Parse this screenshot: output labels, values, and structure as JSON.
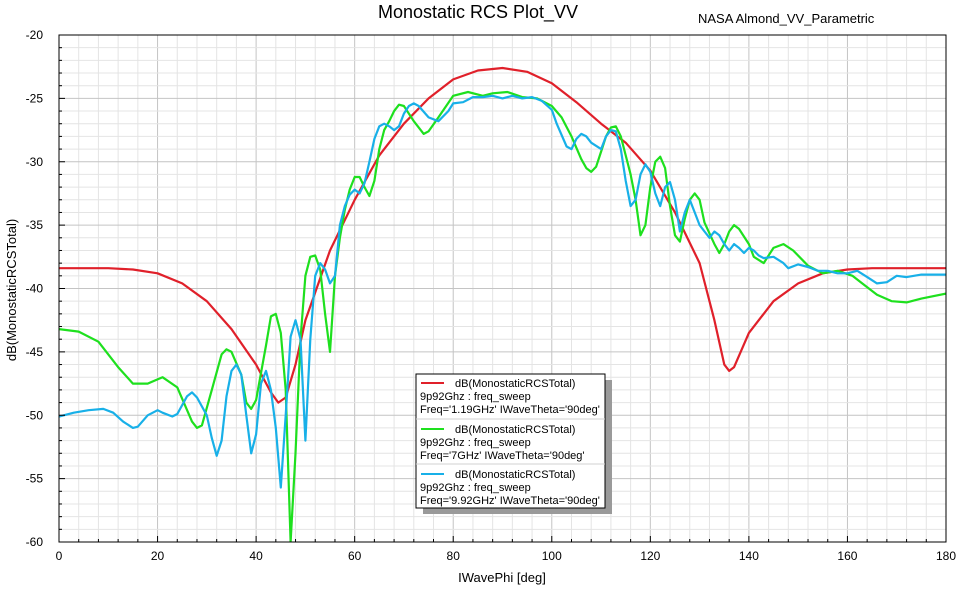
{
  "chart_data": {
    "type": "line",
    "title": "Monostatic RCS Plot_VV",
    "subtitle": "NASA Almond_VV_Parametric",
    "xlabel": "IWavePhi [deg]",
    "ylabel": "dB(MonostaticRCSTotal)",
    "xlim": [
      0,
      180
    ],
    "ylim": [
      -60,
      -20
    ],
    "xticks": [
      0,
      20,
      40,
      60,
      80,
      100,
      120,
      140,
      160,
      180
    ],
    "yticks": [
      -20,
      -25,
      -30,
      -35,
      -40,
      -45,
      -50,
      -55,
      -60
    ],
    "grid": true,
    "legend_position": "center-bottom",
    "series": [
      {
        "name": "dB(MonostaticRCSTotal)",
        "legend_line2": "9p92Ghz : freq_sweep",
        "legend_line3": "Freq='1.19GHz' IWaveTheta='90deg'",
        "color": "#e0202a",
        "points": [
          [
            0,
            -38.4
          ],
          [
            5,
            -38.4
          ],
          [
            10,
            -38.4
          ],
          [
            15,
            -38.5
          ],
          [
            20,
            -38.8
          ],
          [
            25,
            -39.6
          ],
          [
            30,
            -41.0
          ],
          [
            35,
            -43.2
          ],
          [
            40,
            -46.0
          ],
          [
            43,
            -48.2
          ],
          [
            44.5,
            -49.0
          ],
          [
            46,
            -48.6
          ],
          [
            48,
            -46.0
          ],
          [
            50,
            -42.5
          ],
          [
            55,
            -37.0
          ],
          [
            60,
            -33.0
          ],
          [
            65,
            -29.5
          ],
          [
            70,
            -27.0
          ],
          [
            75,
            -25.0
          ],
          [
            80,
            -23.5
          ],
          [
            85,
            -22.8
          ],
          [
            90,
            -22.6
          ],
          [
            95,
            -22.9
          ],
          [
            100,
            -23.8
          ],
          [
            105,
            -25.3
          ],
          [
            110,
            -27.0
          ],
          [
            115,
            -28.5
          ],
          [
            120,
            -30.7
          ],
          [
            125,
            -34.0
          ],
          [
            130,
            -38.0
          ],
          [
            133,
            -42.5
          ],
          [
            135,
            -46.0
          ],
          [
            136,
            -46.5
          ],
          [
            137,
            -46.2
          ],
          [
            140,
            -43.5
          ],
          [
            145,
            -41.0
          ],
          [
            150,
            -39.6
          ],
          [
            155,
            -38.8
          ],
          [
            160,
            -38.5
          ],
          [
            165,
            -38.4
          ],
          [
            170,
            -38.4
          ],
          [
            180,
            -38.4
          ]
        ]
      },
      {
        "name": "dB(MonostaticRCSTotal)",
        "legend_line2": "9p92Ghz : freq_sweep",
        "legend_line3": "Freq='7GHz' IWaveTheta='90deg'",
        "color": "#1ee01e",
        "points": [
          [
            0,
            -43.2
          ],
          [
            4,
            -43.4
          ],
          [
            8,
            -44.2
          ],
          [
            12,
            -46.2
          ],
          [
            15,
            -47.5
          ],
          [
            18,
            -47.5
          ],
          [
            21,
            -47.0
          ],
          [
            24,
            -47.8
          ],
          [
            27,
            -50.5
          ],
          [
            28,
            -51.0
          ],
          [
            29,
            -50.8
          ],
          [
            31,
            -48.0
          ],
          [
            33,
            -45.2
          ],
          [
            34,
            -44.8
          ],
          [
            35,
            -45.0
          ],
          [
            37,
            -46.8
          ],
          [
            38,
            -49.0
          ],
          [
            39,
            -49.5
          ],
          [
            40,
            -48.8
          ],
          [
            42,
            -44.5
          ],
          [
            43,
            -42.2
          ],
          [
            44,
            -42.0
          ],
          [
            45,
            -43.5
          ],
          [
            46,
            -48.0
          ],
          [
            47,
            -60.0
          ],
          [
            48,
            -53.0
          ],
          [
            49,
            -44.0
          ],
          [
            50,
            -39.0
          ],
          [
            51,
            -37.5
          ],
          [
            52,
            -37.4
          ],
          [
            53,
            -38.5
          ],
          [
            54,
            -42.0
          ],
          [
            55,
            -45.0
          ],
          [
            56,
            -39.0
          ],
          [
            57,
            -36.0
          ],
          [
            58,
            -33.8
          ],
          [
            59,
            -32.2
          ],
          [
            60,
            -31.2
          ],
          [
            61,
            -31.2
          ],
          [
            62,
            -32.0
          ],
          [
            63,
            -32.7
          ],
          [
            64,
            -31.5
          ],
          [
            65,
            -29.0
          ],
          [
            66,
            -27.5
          ],
          [
            67,
            -26.8
          ],
          [
            68,
            -26.0
          ],
          [
            69,
            -25.5
          ],
          [
            70,
            -25.6
          ],
          [
            72,
            -26.8
          ],
          [
            74,
            -27.8
          ],
          [
            75,
            -27.6
          ],
          [
            77,
            -26.5
          ],
          [
            80,
            -24.8
          ],
          [
            83,
            -24.5
          ],
          [
            86,
            -24.8
          ],
          [
            88,
            -24.6
          ],
          [
            91,
            -24.5
          ],
          [
            94,
            -24.9
          ],
          [
            97,
            -25.0
          ],
          [
            100,
            -25.6
          ],
          [
            102,
            -26.5
          ],
          [
            104,
            -28.0
          ],
          [
            106,
            -29.8
          ],
          [
            107,
            -30.5
          ],
          [
            108,
            -30.8
          ],
          [
            109,
            -30.4
          ],
          [
            110,
            -29.2
          ],
          [
            111,
            -28.0
          ],
          [
            112,
            -27.3
          ],
          [
            113,
            -27.2
          ],
          [
            114,
            -28.0
          ],
          [
            115,
            -29.5
          ],
          [
            116,
            -31.0
          ],
          [
            117,
            -33.0
          ],
          [
            118,
            -35.8
          ],
          [
            119,
            -35.0
          ],
          [
            120,
            -32.0
          ],
          [
            121,
            -30.0
          ],
          [
            122,
            -29.6
          ],
          [
            123,
            -30.5
          ],
          [
            124,
            -33.5
          ],
          [
            125,
            -35.8
          ],
          [
            126,
            -36.3
          ],
          [
            127,
            -34.5
          ],
          [
            128,
            -33.0
          ],
          [
            129,
            -32.5
          ],
          [
            130,
            -33.0
          ],
          [
            131,
            -34.8
          ],
          [
            133,
            -36.5
          ],
          [
            134,
            -37.2
          ],
          [
            135,
            -36.5
          ],
          [
            136,
            -35.5
          ],
          [
            137,
            -35.0
          ],
          [
            138,
            -35.3
          ],
          [
            140,
            -36.5
          ],
          [
            141,
            -37.5
          ],
          [
            143,
            -38.0
          ],
          [
            145,
            -36.8
          ],
          [
            147,
            -36.5
          ],
          [
            149,
            -37.0
          ],
          [
            152,
            -38.2
          ],
          [
            155,
            -38.8
          ],
          [
            158,
            -38.6
          ],
          [
            161,
            -39.0
          ],
          [
            163,
            -39.6
          ],
          [
            166,
            -40.5
          ],
          [
            169,
            -41.0
          ],
          [
            172,
            -41.1
          ],
          [
            175,
            -40.8
          ],
          [
            180,
            -40.4
          ]
        ]
      },
      {
        "name": "dB(MonostaticRCSTotal)",
        "legend_line2": "9p92Ghz : freq_sweep",
        "legend_line3": "Freq='9.92GHz' IWaveTheta='90deg'",
        "color": "#18b0e8",
        "points": [
          [
            0,
            -50.1
          ],
          [
            3,
            -49.8
          ],
          [
            6,
            -49.6
          ],
          [
            9,
            -49.5
          ],
          [
            11,
            -49.8
          ],
          [
            13,
            -50.5
          ],
          [
            15,
            -51.0
          ],
          [
            16,
            -50.9
          ],
          [
            18,
            -50.0
          ],
          [
            20,
            -49.6
          ],
          [
            21,
            -49.8
          ],
          [
            23,
            -50.1
          ],
          [
            24,
            -49.9
          ],
          [
            26,
            -48.5
          ],
          [
            27,
            -48.2
          ],
          [
            28,
            -48.6
          ],
          [
            30,
            -50.0
          ],
          [
            31,
            -51.8
          ],
          [
            32,
            -53.2
          ],
          [
            33,
            -52.0
          ],
          [
            34,
            -48.5
          ],
          [
            35,
            -46.5
          ],
          [
            36,
            -46.0
          ],
          [
            37,
            -46.8
          ],
          [
            38,
            -50.0
          ],
          [
            39,
            -53.0
          ],
          [
            40,
            -51.5
          ],
          [
            41,
            -47.5
          ],
          [
            42,
            -46.5
          ],
          [
            43,
            -48.0
          ],
          [
            44,
            -51.0
          ],
          [
            45,
            -55.7
          ],
          [
            46,
            -50.0
          ],
          [
            47,
            -43.8
          ],
          [
            48,
            -42.5
          ],
          [
            49,
            -44.0
          ],
          [
            50,
            -52.0
          ],
          [
            51,
            -44.0
          ],
          [
            52,
            -39.0
          ],
          [
            53,
            -38.0
          ],
          [
            54,
            -38.5
          ],
          [
            55,
            -39.6
          ],
          [
            56,
            -39.0
          ],
          [
            57,
            -35.0
          ],
          [
            58,
            -33.5
          ],
          [
            59,
            -32.6
          ],
          [
            60,
            -32.2
          ],
          [
            61,
            -32.5
          ],
          [
            62,
            -31.7
          ],
          [
            63,
            -30.0
          ],
          [
            64,
            -28.2
          ],
          [
            65,
            -27.2
          ],
          [
            66,
            -27.0
          ],
          [
            67,
            -27.2
          ],
          [
            68,
            -27.5
          ],
          [
            69,
            -27.2
          ],
          [
            70,
            -26.2
          ],
          [
            71,
            -25.6
          ],
          [
            72,
            -25.4
          ],
          [
            73,
            -25.6
          ],
          [
            75,
            -26.5
          ],
          [
            77,
            -26.8
          ],
          [
            79,
            -26.0
          ],
          [
            80,
            -25.4
          ],
          [
            82,
            -25.3
          ],
          [
            84,
            -24.9
          ],
          [
            86,
            -24.9
          ],
          [
            88,
            -24.8
          ],
          [
            90,
            -25.0
          ],
          [
            92,
            -24.8
          ],
          [
            94,
            -25.0
          ],
          [
            96,
            -24.9
          ],
          [
            98,
            -25.2
          ],
          [
            100,
            -25.9
          ],
          [
            101,
            -27.0
          ],
          [
            103,
            -28.8
          ],
          [
            104,
            -29.0
          ],
          [
            105,
            -28.2
          ],
          [
            106,
            -27.8
          ],
          [
            107,
            -28.0
          ],
          [
            108,
            -28.5
          ],
          [
            110,
            -29.0
          ],
          [
            111,
            -28.0
          ],
          [
            112,
            -27.5
          ],
          [
            113,
            -27.6
          ],
          [
            114,
            -29.0
          ],
          [
            115,
            -31.5
          ],
          [
            116,
            -33.5
          ],
          [
            117,
            -33.0
          ],
          [
            118,
            -31.0
          ],
          [
            119,
            -30.2
          ],
          [
            120,
            -30.8
          ],
          [
            121,
            -32.5
          ],
          [
            122,
            -33.5
          ],
          [
            123,
            -32.0
          ],
          [
            124,
            -31.6
          ],
          [
            125,
            -33.0
          ],
          [
            126,
            -35.5
          ],
          [
            127,
            -34.0
          ],
          [
            128,
            -33.0
          ],
          [
            129,
            -34.0
          ],
          [
            130,
            -35.0
          ],
          [
            131,
            -35.5
          ],
          [
            132,
            -36.0
          ],
          [
            133,
            -35.5
          ],
          [
            134,
            -35.8
          ],
          [
            135,
            -36.5
          ],
          [
            136,
            -37.0
          ],
          [
            137,
            -36.5
          ],
          [
            138,
            -36.8
          ],
          [
            139,
            -37.2
          ],
          [
            140,
            -36.8
          ],
          [
            141,
            -37.0
          ],
          [
            142,
            -37.4
          ],
          [
            143,
            -37.6
          ],
          [
            145,
            -37.5
          ],
          [
            147,
            -38.0
          ],
          [
            148,
            -38.4
          ],
          [
            150,
            -38.1
          ],
          [
            152,
            -38.3
          ],
          [
            154,
            -38.6
          ],
          [
            156,
            -38.6
          ],
          [
            158,
            -38.8
          ],
          [
            160,
            -38.8
          ],
          [
            162,
            -38.6
          ],
          [
            164,
            -39.1
          ],
          [
            166,
            -39.6
          ],
          [
            168,
            -39.5
          ],
          [
            170,
            -39.0
          ],
          [
            172,
            -39.1
          ],
          [
            175,
            -38.9
          ],
          [
            180,
            -38.9
          ]
        ]
      }
    ]
  }
}
